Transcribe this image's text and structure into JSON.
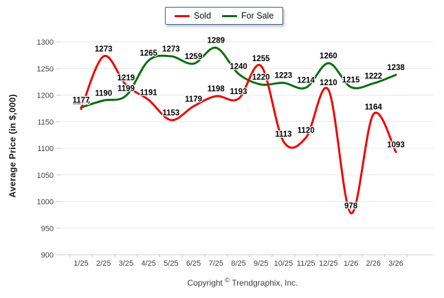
{
  "chart_data": {
    "type": "line",
    "title": "",
    "categories": [
      "1/25",
      "2/25",
      "3/25",
      "4/25",
      "5/25",
      "6/25",
      "7/25",
      "8/25",
      "9/25",
      "10/25",
      "11/25",
      "12/25",
      "1/26",
      "2/26",
      "3/26"
    ],
    "series": [
      {
        "name": "Sold",
        "color": "#ee0000",
        "values": [
          1174,
          1273,
          1219,
          1191,
          1153,
          1179,
          1198,
          1193,
          1255,
          1113,
          1120,
          1210,
          978,
          1164,
          1093
        ]
      },
      {
        "name": "For Sale",
        "color": "#076e07",
        "values": [
          1177,
          1190,
          1199,
          1265,
          1273,
          1259,
          1289,
          1240,
          1220,
          1223,
          1214,
          1260,
          1215,
          1222,
          1238
        ]
      }
    ],
    "xlabel": "",
    "ylabel": "Average Price (in $,000)",
    "ylim": [
      900,
      1300
    ],
    "ytick_step": 50,
    "yticks": [
      900,
      950,
      1000,
      1050,
      1100,
      1150,
      1200,
      1250,
      1300
    ],
    "grid": true,
    "legend_position": "top-center",
    "point_labels": true,
    "grid_color": "#e8e8e8",
    "axis_color": "#c3ccd5"
  },
  "footer": {
    "copyright_word": "Copyright",
    "copyright_symbol": "©",
    "company": "Trendgraphix, Inc."
  }
}
